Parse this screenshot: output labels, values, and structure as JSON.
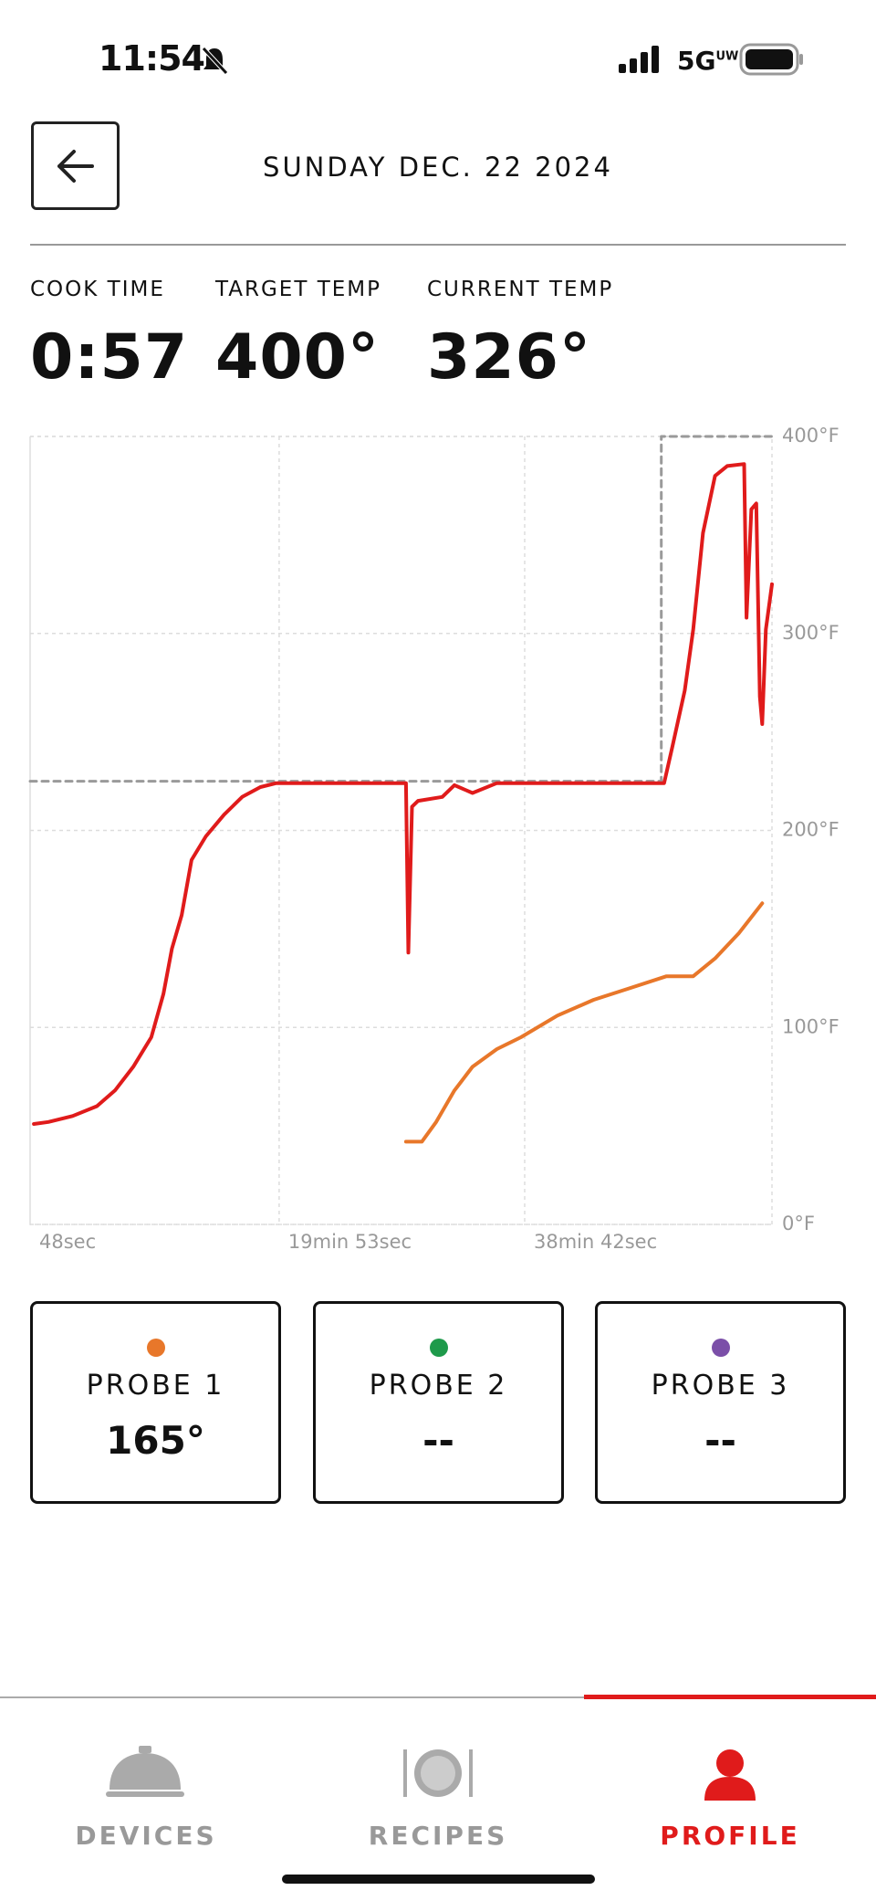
{
  "status_bar": {
    "time": "11:54",
    "network": "5G",
    "network_badge": "UW"
  },
  "header": {
    "title": "SUNDAY DEC. 22 2024"
  },
  "stats": [
    {
      "label": "COOK TIME",
      "value": "0:57"
    },
    {
      "label": "TARGET TEMP",
      "value": "400°"
    },
    {
      "label": "CURRENT TEMP",
      "value": "326°"
    }
  ],
  "chart_data": {
    "type": "line",
    "grid": true,
    "xlim": [
      48,
      3459
    ],
    "ylim": [
      0,
      400
    ],
    "xticks": [
      {
        "value": 48,
        "label": "48sec"
      },
      {
        "value": 1193,
        "label": "19min 53sec"
      },
      {
        "value": 2322,
        "label": "38min 42sec"
      }
    ],
    "yticks": [
      {
        "value": 0,
        "label": "0°F"
      },
      {
        "value": 100,
        "label": "100°F"
      },
      {
        "value": 200,
        "label": "200°F"
      },
      {
        "value": 300,
        "label": "300°F"
      },
      {
        "value": 400,
        "label": "400°F"
      }
    ],
    "series": [
      {
        "color": "#9a9a9a",
        "dashed": true,
        "x": [
          48,
          2950,
          2950,
          3459
        ],
        "values": [
          225,
          225,
          400,
          400
        ]
      },
      {
        "color": "#e01b1b",
        "x": [
          65,
          132,
          243,
          355,
          438,
          522,
          605,
          661,
          700,
          745,
          790,
          856,
          940,
          1023,
          1107,
          1180,
          1776,
          1787,
          1804,
          1832,
          1943,
          1999,
          2082,
          2194,
          2963,
          3002,
          3058,
          3097,
          3142,
          3197,
          3253,
          3331,
          3342,
          3364,
          3387,
          3403,
          3414,
          3431,
          3459
        ],
        "values": [
          51,
          52,
          55,
          60,
          68,
          80,
          95,
          117,
          140,
          157,
          185,
          197,
          208,
          217,
          222,
          224,
          224,
          138,
          212,
          215,
          217,
          223,
          219,
          224,
          224,
          243,
          271,
          302,
          351,
          380,
          385,
          386,
          308,
          363,
          366,
          268,
          254,
          302,
          325
        ]
      },
      {
        "color": "#e8772a",
        "x": [
          1776,
          1849,
          1915,
          1999,
          2082,
          2194,
          2305,
          2472,
          2639,
          2807,
          2974,
          3097,
          3197,
          3308,
          3414
        ],
        "values": [
          42,
          42,
          52,
          68,
          80,
          89,
          95,
          106,
          114,
          120,
          126,
          126,
          135,
          148,
          163
        ]
      }
    ]
  },
  "probes": [
    {
      "name": "PROBE 1",
      "value": "165°"
    },
    {
      "name": "PROBE 2",
      "value": "--"
    },
    {
      "name": "PROBE 3",
      "value": "--"
    }
  ],
  "nav": [
    "DEVICES",
    "RECIPES",
    "PROFILE"
  ]
}
